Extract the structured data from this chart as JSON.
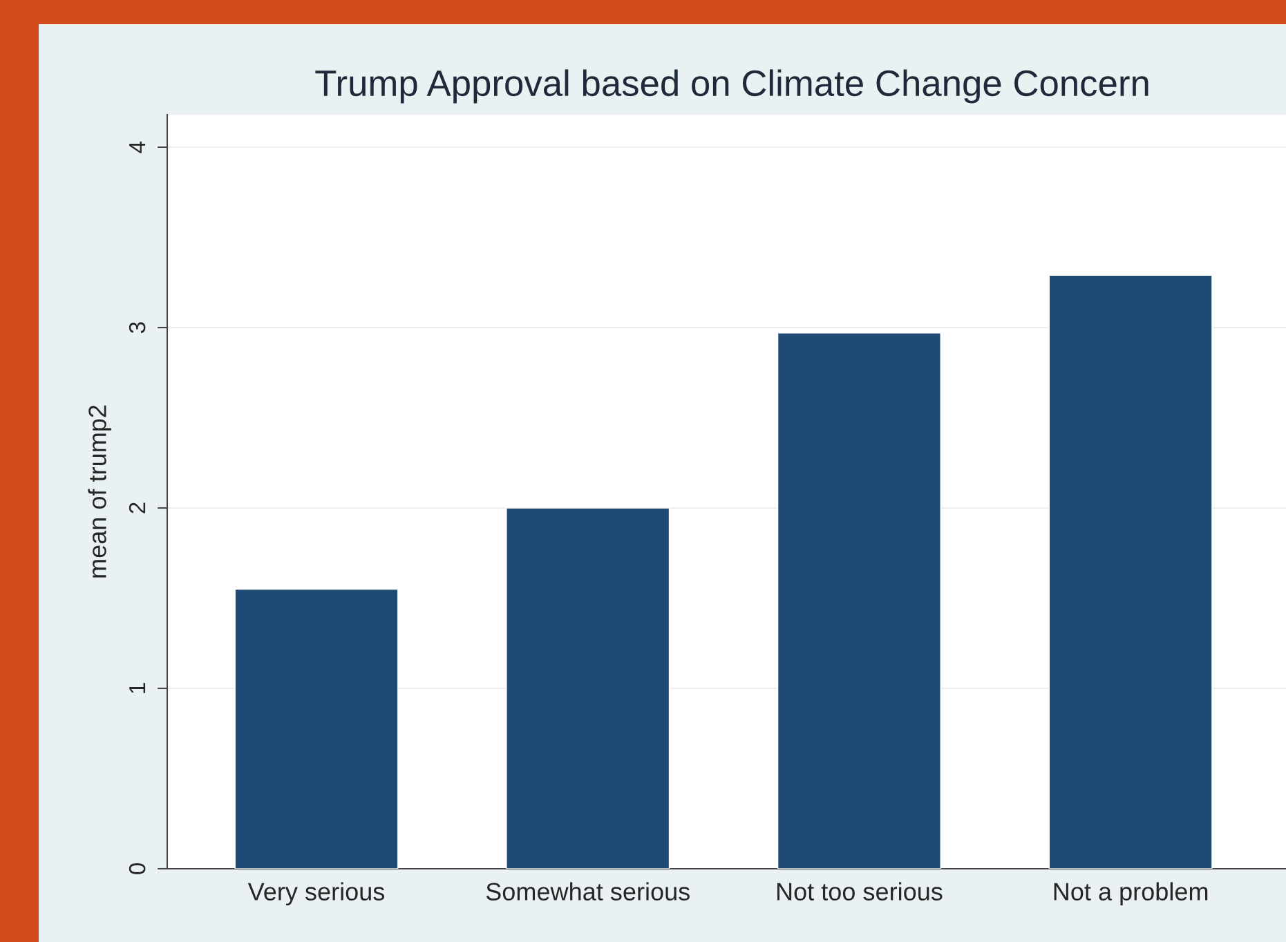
{
  "chart_data": {
    "type": "bar",
    "title": "Trump Approval based on Climate Change Concern",
    "ylabel": "mean of trump2",
    "categories": [
      "Very serious",
      "Somewhat serious",
      "Not too serious",
      "Not a problem"
    ],
    "values": [
      1.55,
      2.0,
      2.97,
      3.29
    ],
    "color": "#1f4a73",
    "ylim": [
      0,
      4.18
    ],
    "yticks": [
      0,
      1,
      2,
      3,
      4
    ],
    "grid": "y"
  }
}
